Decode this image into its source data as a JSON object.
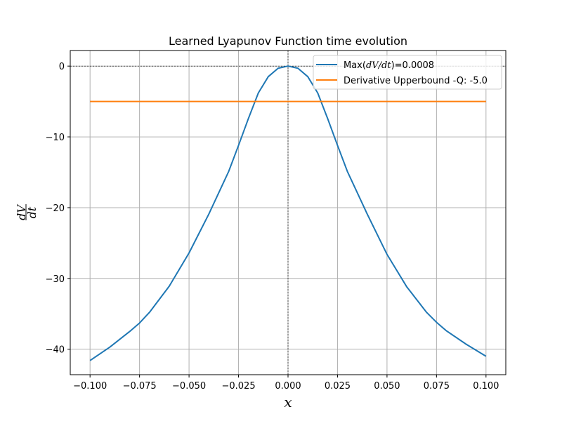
{
  "chart_data": {
    "type": "line",
    "title": "Learned Lyapunov Function time evolution",
    "xlabel": "x",
    "ylabel": {
      "numerator": "dV",
      "denominator": "dt"
    },
    "xlim": [
      -0.11,
      0.11
    ],
    "ylim": [
      -43.6,
      2.2
    ],
    "xticks": [
      -0.1,
      -0.075,
      -0.05,
      -0.025,
      0.0,
      0.025,
      0.05,
      0.075,
      0.1
    ],
    "xtick_labels": [
      "−0.100",
      "−0.075",
      "−0.050",
      "−0.025",
      "0.000",
      "0.025",
      "0.050",
      "0.075",
      "0.100"
    ],
    "yticks": [
      0,
      -10,
      -20,
      -30,
      -40
    ],
    "ytick_labels": [
      "0",
      "−10",
      "−20",
      "−30",
      "−40"
    ],
    "grid": true,
    "reference_lines": {
      "horizontal_y": 0,
      "vertical_x": 0
    },
    "legend_position": "top-right",
    "series": [
      {
        "name": "Max(dV/dt)=0.0008",
        "legend": {
          "prefix": "Max(",
          "math": "dV/dt",
          "suffix": ")=0.0008"
        },
        "color": "#1f77b4",
        "x": [
          -0.1,
          -0.09,
          -0.08,
          -0.075,
          -0.07,
          -0.06,
          -0.05,
          -0.04,
          -0.03,
          -0.025,
          -0.02,
          -0.015,
          -0.01,
          -0.005,
          0.0,
          0.005,
          0.01,
          0.015,
          0.02,
          0.025,
          0.03,
          0.04,
          0.05,
          0.06,
          0.07,
          0.075,
          0.08,
          0.09,
          0.1
        ],
        "y": [
          -41.6,
          -39.7,
          -37.5,
          -36.3,
          -34.8,
          -31.1,
          -26.4,
          -20.9,
          -14.9,
          -11.2,
          -7.4,
          -3.8,
          -1.5,
          -0.3,
          0.0,
          -0.3,
          -1.5,
          -3.8,
          -7.4,
          -11.2,
          -14.9,
          -20.9,
          -26.6,
          -31.2,
          -34.8,
          -36.2,
          -37.4,
          -39.3,
          -41.0
        ]
      },
      {
        "name": "Derivative Upperbound -Q: -5.0",
        "color": "#ff7f0e",
        "x": [
          -0.1,
          0.1
        ],
        "y": [
          -5.0,
          -5.0
        ]
      }
    ]
  }
}
